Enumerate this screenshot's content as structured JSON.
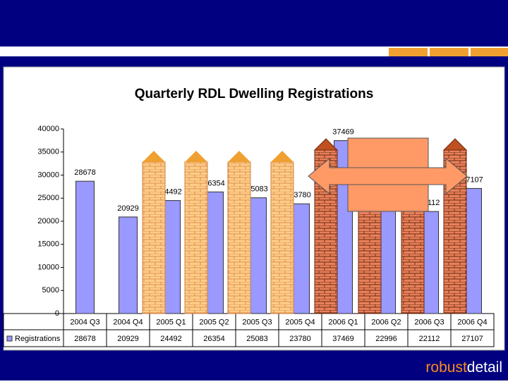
{
  "chart_data": {
    "type": "bar",
    "title": "Quarterly RDL Dwelling Registrations",
    "categories": [
      "2004 Q3",
      "2004 Q4",
      "2005 Q1",
      "2005 Q2",
      "2005 Q3",
      "2005 Q4",
      "2006 Q1",
      "2006 Q2",
      "2006 Q3",
      "2006 Q4"
    ],
    "series": [
      {
        "name": "Registrations",
        "color": "#9999ff",
        "values": [
          28678,
          20929,
          24492,
          26354,
          25083,
          23780,
          37469,
          22996,
          22112,
          27107
        ]
      }
    ],
    "ylim": [
      0,
      40000
    ],
    "yticks": [
      0,
      5000,
      10000,
      15000,
      20000,
      25000,
      30000,
      35000,
      40000
    ],
    "grid": false
  },
  "footer": {
    "brand_parts": [
      "robust",
      "detail"
    ]
  }
}
